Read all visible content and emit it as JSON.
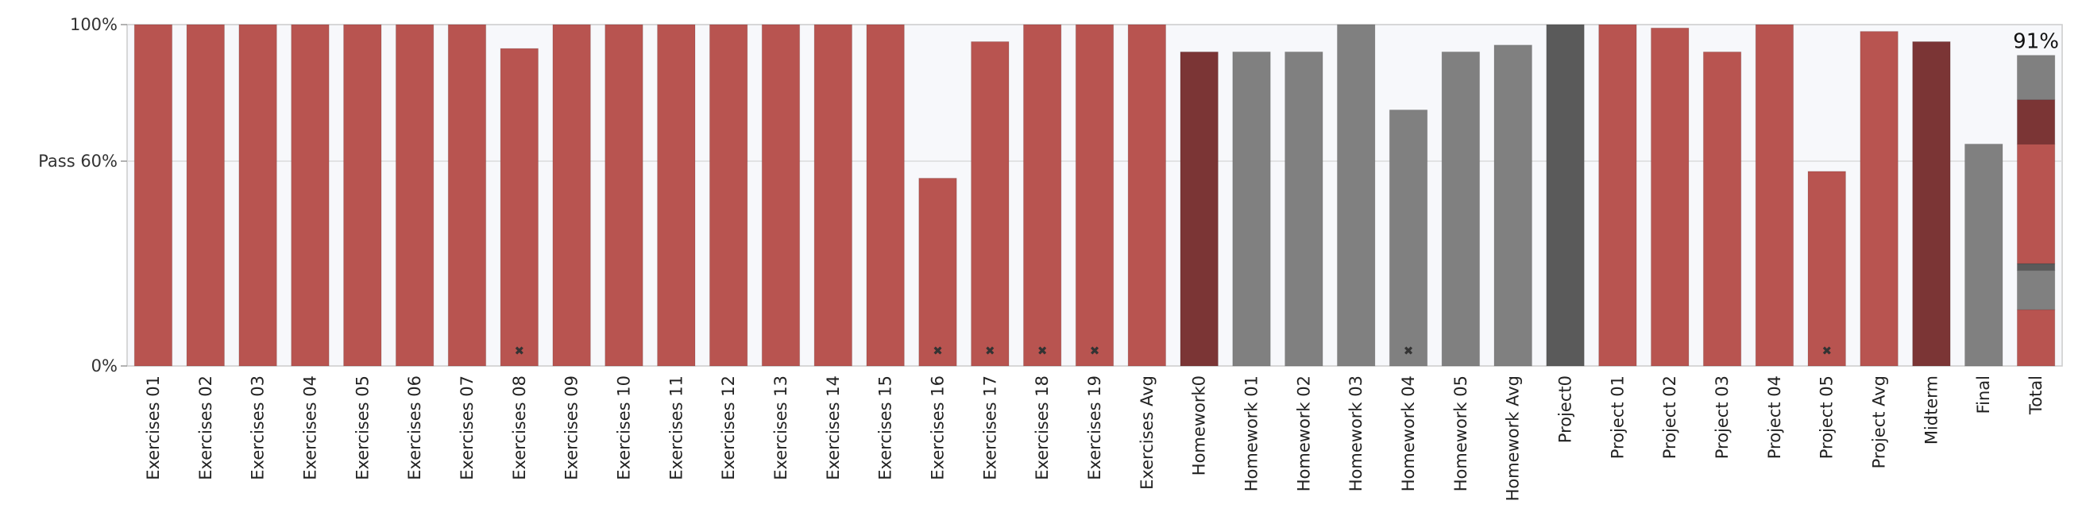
{
  "chart_data": {
    "type": "bar",
    "title": "",
    "xlabel": "",
    "ylabel": "",
    "ylim": [
      0,
      100
    ],
    "yticks": [
      {
        "value": 0,
        "label": "0%"
      },
      {
        "value": 60,
        "label": "Pass 60%"
      },
      {
        "value": 100,
        "label": "100%"
      }
    ],
    "grid": false,
    "legend": "none",
    "colors": {
      "exercise": "#b85450",
      "homework": "#808080",
      "project_header": "#5a5a5a",
      "dark_red": "#7b3535",
      "plot_background": "#f7f8fb",
      "pass_line": "#dcdcdc"
    },
    "categories": [
      {
        "label": "Exercises 01",
        "value": 100,
        "color": "exercise"
      },
      {
        "label": "Exercises 02",
        "value": 100,
        "color": "exercise"
      },
      {
        "label": "Exercises 03",
        "value": 100,
        "color": "exercise"
      },
      {
        "label": "Exercises 04",
        "value": 100,
        "color": "exercise"
      },
      {
        "label": "Exercises 05",
        "value": 100,
        "color": "exercise"
      },
      {
        "label": "Exercises 06",
        "value": 100,
        "color": "exercise"
      },
      {
        "label": "Exercises 07",
        "value": 100,
        "color": "exercise"
      },
      {
        "label": "Exercises 08",
        "value": 93,
        "color": "exercise",
        "marker": "✖"
      },
      {
        "label": "Exercises 09",
        "value": 100,
        "color": "exercise"
      },
      {
        "label": "Exercises 10",
        "value": 100,
        "color": "exercise"
      },
      {
        "label": "Exercises 11",
        "value": 100,
        "color": "exercise"
      },
      {
        "label": "Exercises 12",
        "value": 100,
        "color": "exercise"
      },
      {
        "label": "Exercises 13",
        "value": 100,
        "color": "exercise"
      },
      {
        "label": "Exercises 14",
        "value": 100,
        "color": "exercise"
      },
      {
        "label": "Exercises 15",
        "value": 100,
        "color": "exercise"
      },
      {
        "label": "Exercises 16",
        "value": 55,
        "color": "exercise",
        "marker": "✖"
      },
      {
        "label": "Exercises 17",
        "value": 95,
        "color": "exercise",
        "marker": "✖"
      },
      {
        "label": "Exercises 18",
        "value": 100,
        "color": "exercise",
        "marker": "✖"
      },
      {
        "label": "Exercises 19",
        "value": 100,
        "color": "exercise",
        "marker": "✖"
      },
      {
        "label": "Exercises Avg",
        "value": 100,
        "color": "exercise"
      },
      {
        "label": "Homework0",
        "value": 92,
        "color": "dark_red"
      },
      {
        "label": "Homework 01",
        "value": 92,
        "color": "homework"
      },
      {
        "label": "Homework 02",
        "value": 92,
        "color": "homework"
      },
      {
        "label": "Homework 03",
        "value": 100,
        "color": "homework"
      },
      {
        "label": "Homework 04",
        "value": 75,
        "color": "homework",
        "marker": "✖"
      },
      {
        "label": "Homework 05",
        "value": 92,
        "color": "homework"
      },
      {
        "label": "Homework Avg",
        "value": 94,
        "color": "homework"
      },
      {
        "label": "Project0",
        "value": 100,
        "color": "project_header"
      },
      {
        "label": "Project 01",
        "value": 100,
        "color": "exercise"
      },
      {
        "label": "Project 02",
        "value": 99,
        "color": "exercise"
      },
      {
        "label": "Project 03",
        "value": 92,
        "color": "exercise"
      },
      {
        "label": "Project 04",
        "value": 100,
        "color": "exercise"
      },
      {
        "label": "Project 05",
        "value": 57,
        "color": "exercise",
        "marker": "✖"
      },
      {
        "label": "Project Avg",
        "value": 98,
        "color": "exercise"
      },
      {
        "label": "Midterm",
        "value": 95,
        "color": "dark_red"
      },
      {
        "label": "Final",
        "value": 65,
        "color": "homework"
      },
      {
        "label": "Total",
        "value": 91,
        "stacked": true,
        "total_label": "91%"
      }
    ],
    "total_segments": [
      {
        "from": 0,
        "to": 16.5,
        "color": "exercise"
      },
      {
        "from": 16.5,
        "to": 28,
        "color": "homework"
      },
      {
        "from": 28,
        "to": 30,
        "color": "project_header"
      },
      {
        "from": 30,
        "to": 65,
        "color": "exercise"
      },
      {
        "from": 65,
        "to": 78,
        "color": "dark_red"
      },
      {
        "from": 78,
        "to": 91,
        "color": "homework"
      }
    ]
  }
}
